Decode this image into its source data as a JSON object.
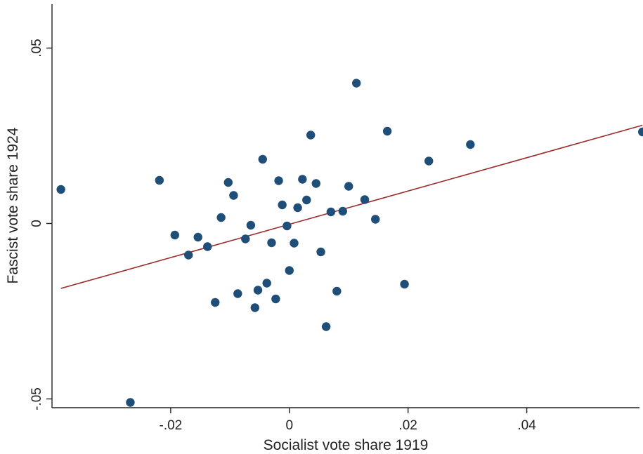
{
  "chart_data": {
    "type": "scatter",
    "title": "",
    "xlabel": "Socialist vote share 1919",
    "ylabel": "Fascist vote share 1924",
    "xlim": [
      -0.04,
      0.059
    ],
    "ylim": [
      -0.0525,
      0.0625
    ],
    "x_ticks": [
      -0.02,
      0,
      0.02,
      0.04
    ],
    "x_tick_labels": [
      "-.02",
      "0",
      ".02",
      ".04"
    ],
    "y_ticks": [
      -0.05,
      0,
      0.05
    ],
    "y_tick_labels": [
      "-.05",
      "0",
      ".05"
    ],
    "grid": false,
    "legend": "none",
    "colors": {
      "points": "#1f4e79",
      "fit_line": "#9b2d2d",
      "axes": "#222222"
    },
    "series": [
      {
        "type": "scatter",
        "points": [
          [
            -0.0385,
            0.0097
          ],
          [
            -0.0268,
            -0.051
          ],
          [
            -0.0219,
            0.0123
          ],
          [
            -0.0193,
            -0.0033
          ],
          [
            -0.0154,
            -0.0039
          ],
          [
            -0.0138,
            -0.0066
          ],
          [
            -0.017,
            -0.009
          ],
          [
            -0.0125,
            -0.0225
          ],
          [
            -0.0115,
            0.0017
          ],
          [
            -0.0103,
            0.0117
          ],
          [
            -0.0094,
            0.008
          ],
          [
            -0.0087,
            -0.02
          ],
          [
            -0.0074,
            -0.0044
          ],
          [
            -0.0065,
            -0.0005
          ],
          [
            -0.0058,
            -0.024
          ],
          [
            -0.0053,
            -0.019
          ],
          [
            -0.0045,
            0.0183
          ],
          [
            -0.0038,
            -0.017
          ],
          [
            -0.003,
            -0.0055
          ],
          [
            -0.0023,
            -0.0215
          ],
          [
            -0.0018,
            0.0122
          ],
          [
            -0.0012,
            0.0053
          ],
          [
            -0.0004,
            -0.0007
          ],
          [
            0.0,
            -0.0134
          ],
          [
            0.0008,
            -0.0056
          ],
          [
            0.0014,
            0.0045
          ],
          [
            0.0022,
            0.0126
          ],
          [
            0.0029,
            0.0067
          ],
          [
            0.0036,
            0.0252
          ],
          [
            0.0045,
            0.0114
          ],
          [
            0.0053,
            -0.0081
          ],
          [
            0.0062,
            -0.0294
          ],
          [
            0.007,
            0.0033
          ],
          [
            0.008,
            -0.0193
          ],
          [
            0.009,
            0.0035
          ],
          [
            0.01,
            0.0106
          ],
          [
            0.0113,
            0.04
          ],
          [
            0.0127,
            0.0068
          ],
          [
            0.0145,
            0.0012
          ],
          [
            0.0165,
            0.0263
          ],
          [
            0.0194,
            -0.0173
          ],
          [
            0.0235,
            0.0178
          ],
          [
            0.0305,
            0.0225
          ],
          [
            0.0595,
            0.0261
          ]
        ]
      },
      {
        "type": "line",
        "fit": "linear",
        "x": [
          -0.0385,
          0.0595
        ],
        "y": [
          -0.0185,
          0.028
        ]
      }
    ]
  }
}
